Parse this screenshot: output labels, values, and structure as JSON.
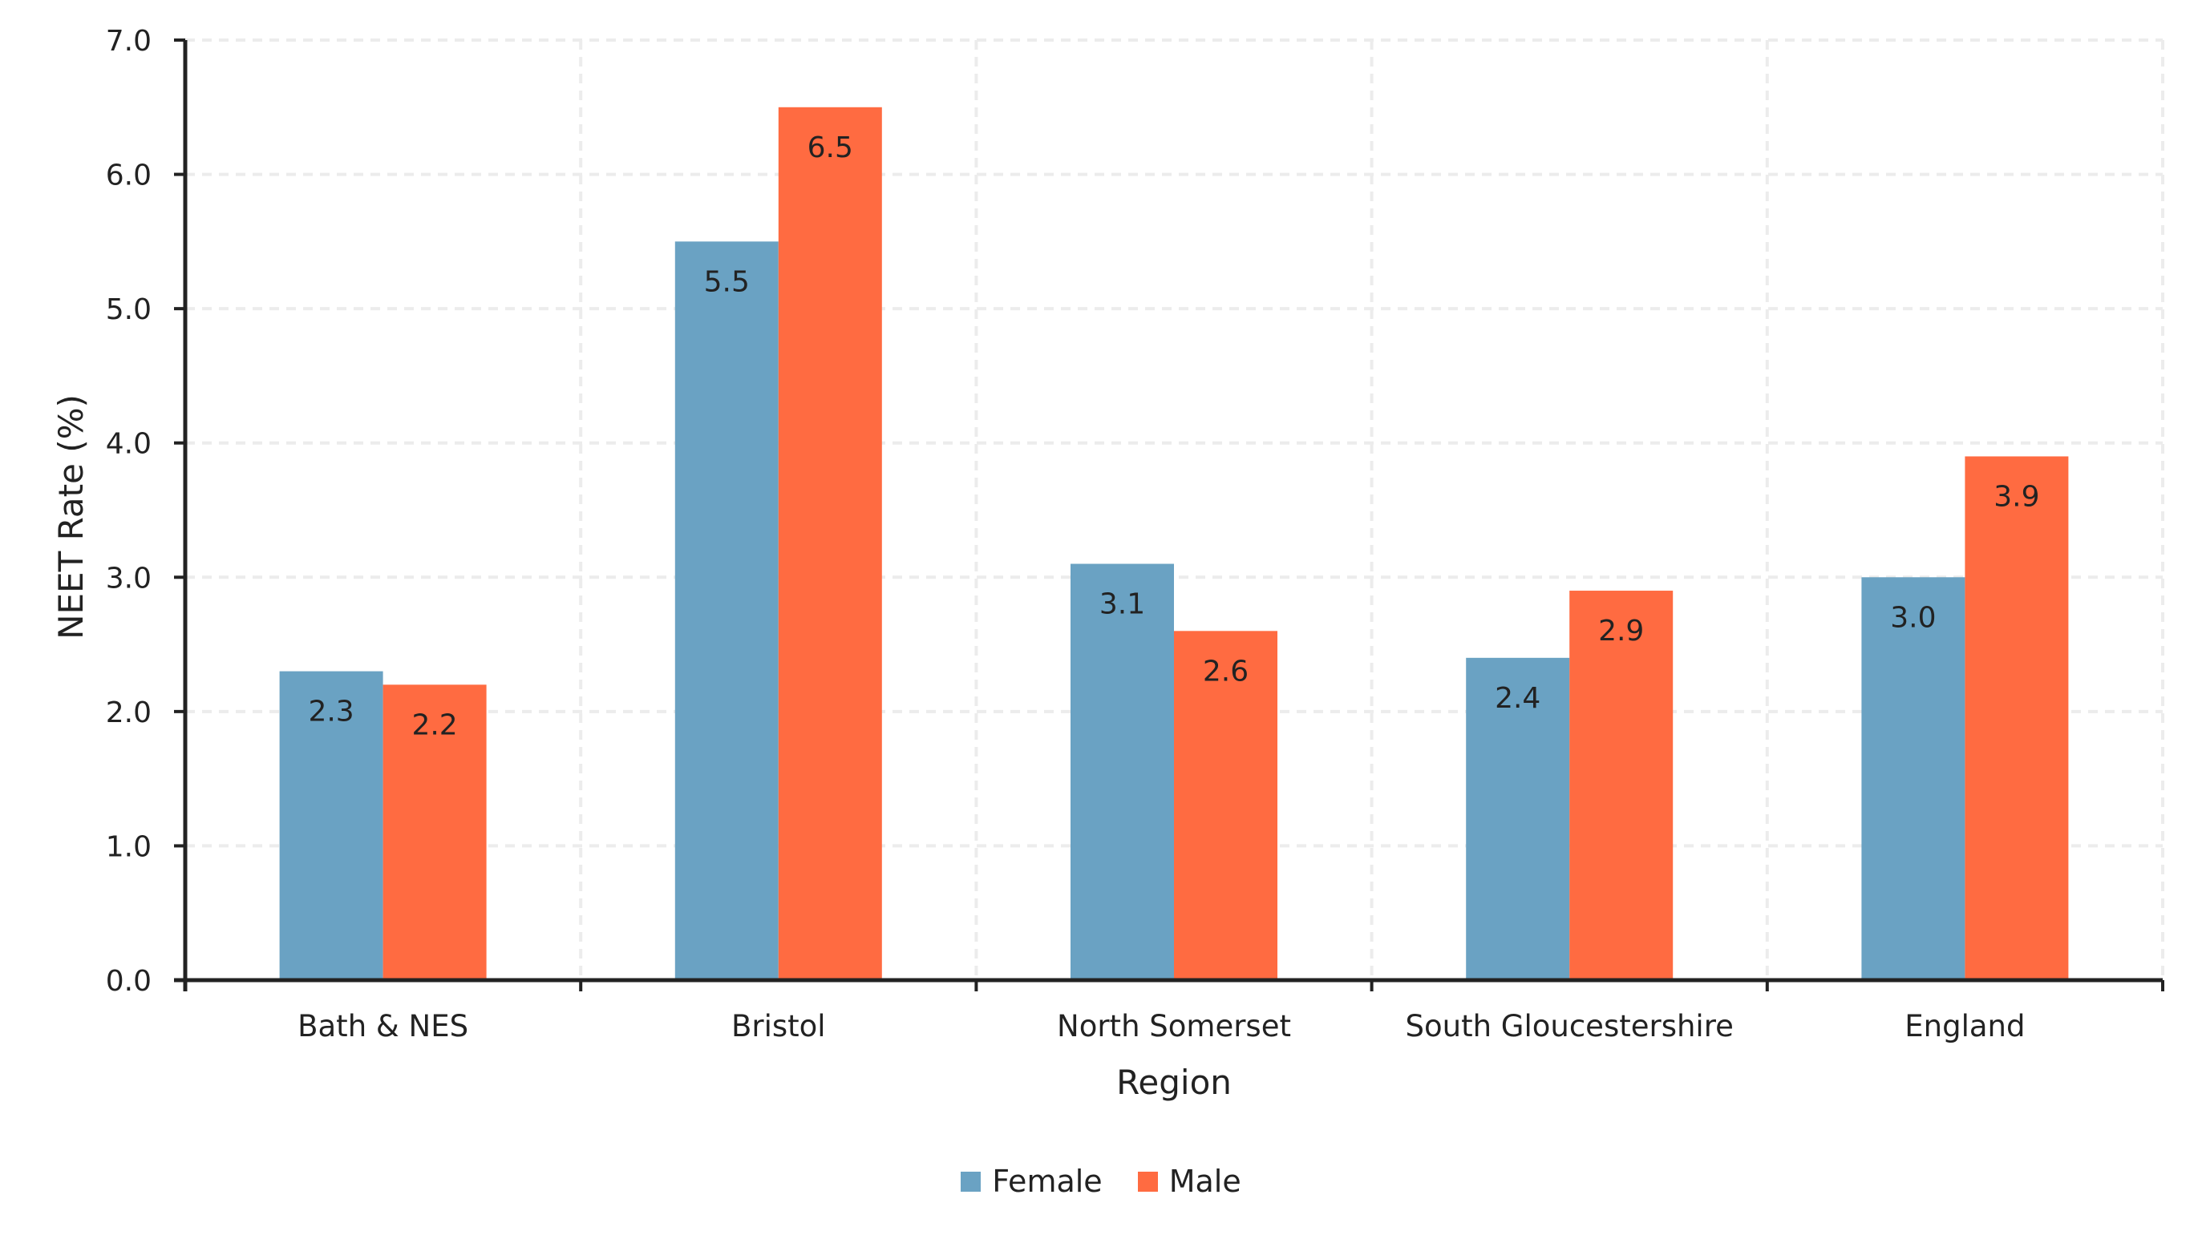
{
  "chart_data": {
    "type": "bar",
    "title": "",
    "xlabel": "Region",
    "ylabel": "NEET Rate (%)",
    "ylim": [
      0,
      7
    ],
    "yticks": [
      "0.0",
      "1.0",
      "2.0",
      "3.0",
      "4.0",
      "5.0",
      "6.0",
      "7.0"
    ],
    "grid": true,
    "legend_position": "bottom",
    "categories": [
      "Bath & NES",
      "Bristol",
      "North Somerset",
      "South Gloucestershire",
      "England"
    ],
    "series": [
      {
        "name": "Female",
        "color": "#6aa2c3",
        "values": [
          2.3,
          5.5,
          3.1,
          2.4,
          3.0
        ]
      },
      {
        "name": "Male",
        "color": "#ff6b41",
        "values": [
          2.2,
          6.5,
          2.6,
          2.9,
          3.9
        ]
      }
    ]
  },
  "legend": {
    "items": [
      {
        "label": "Female",
        "color": "#6aa2c3"
      },
      {
        "label": "Male",
        "color": "#ff6b41"
      }
    ]
  }
}
